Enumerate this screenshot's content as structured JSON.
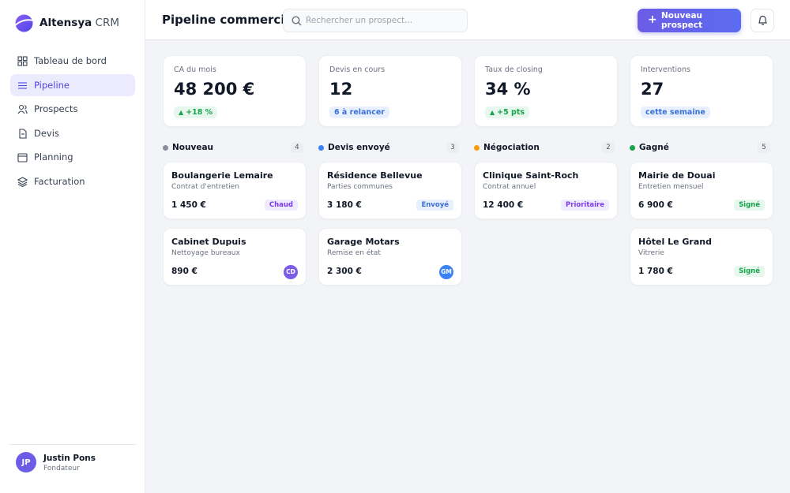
{
  "brand": {
    "name": "Altensya",
    "suffix": "CRM"
  },
  "nav": [
    {
      "label": "Tableau de bord",
      "active": false
    },
    {
      "label": "Pipeline",
      "active": true
    },
    {
      "label": "Prospects",
      "active": false
    },
    {
      "label": "Devis",
      "active": false
    },
    {
      "label": "Planning",
      "active": false
    },
    {
      "label": "Facturation",
      "active": false
    }
  ],
  "user": {
    "initials": "JP",
    "name": "Justin Pons",
    "role": "Fondateur"
  },
  "header": {
    "title": "Pipeline commercial",
    "search_placeholder": "Rechercher un prospect...",
    "button": "Nouveau prospect"
  },
  "kpis": [
    {
      "label": "CA du mois",
      "value": "48 200 €",
      "badge": "+18 %",
      "trend": "up",
      "badge_color": "#16a34a",
      "badge_bg": "#e8f7ee"
    },
    {
      "label": "Devis en cours",
      "value": "12",
      "badge": "6 à relancer",
      "trend": "none",
      "badge_color": "#3b6fd8",
      "badge_bg": "#e9f0fd"
    },
    {
      "label": "Taux de closing",
      "value": "34 %",
      "badge": "+5 pts",
      "trend": "up",
      "badge_color": "#16a34a",
      "badge_bg": "#e8f7ee"
    },
    {
      "label": "Interventions",
      "value": "27",
      "badge": "cette semaine",
      "trend": "none",
      "badge_color": "#3b6fd8",
      "badge_bg": "#e9f0fd"
    }
  ],
  "columns": [
    {
      "name": "Nouveau",
      "count": 4,
      "color": "#8a8f9c",
      "cards": [
        {
          "title": "Boulangerie Lemaire",
          "subtitle": "Contrat d'entretien",
          "amount": "1 450 €",
          "tag": "Chaud",
          "tag_color": "#7c3aed",
          "tag_bg": "#f1ecfd"
        },
        {
          "title": "Cabinet Dupuis",
          "subtitle": "Nettoyage bureaux",
          "amount": "890 €",
          "avatar": "CD",
          "avatar_color": "#7c5ce6"
        }
      ]
    },
    {
      "name": "Devis envoyé",
      "count": 3,
      "color": "#3b82f6",
      "cards": [
        {
          "title": "Résidence Bellevue",
          "subtitle": "Parties communes",
          "amount": "3 180 €",
          "tag": "Envoyé",
          "tag_color": "#3b6fd8",
          "tag_bg": "#e9f0fd"
        },
        {
          "title": "Garage Motars",
          "subtitle": "Remise en état",
          "amount": "2 300 €",
          "avatar": "GM",
          "avatar_color": "#3b82f6"
        }
      ]
    },
    {
      "name": "Négociation",
      "count": 2,
      "color": "#f59e0b",
      "cards": [
        {
          "title": "Clinique Saint-Roch",
          "subtitle": "Contrat annuel",
          "amount": "12 400 €",
          "tag": "Prioritaire",
          "tag_color": "#7c3aed",
          "tag_bg": "#f1ecfd"
        }
      ]
    },
    {
      "name": "Gagné",
      "count": 5,
      "color": "#16a34a",
      "cards": [
        {
          "title": "Mairie de Douai",
          "subtitle": "Entretien mensuel",
          "amount": "6 900 €",
          "tag": "Signé",
          "tag_color": "#16a34a",
          "tag_bg": "#e8f7ee"
        },
        {
          "title": "Hôtel Le Grand",
          "subtitle": "Vitrerie",
          "amount": "1 780 €",
          "tag": "Signé",
          "tag_color": "#16a34a",
          "tag_bg": "#e8f7ee"
        }
      ]
    }
  ]
}
